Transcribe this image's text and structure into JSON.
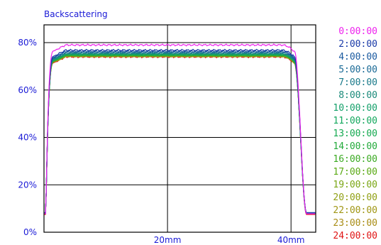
{
  "chart_data": {
    "type": "line",
    "title": "Backscattering",
    "xlabel": "",
    "ylabel": "",
    "x_unit": "mm",
    "xlim": [
      0,
      44
    ],
    "ylim": [
      0,
      80
    ],
    "xticks": [
      {
        "value": 20,
        "label": "20mm"
      },
      {
        "value": 40,
        "label": "40mm"
      }
    ],
    "yticks": [
      {
        "value": 0,
        "label": "0%"
      },
      {
        "value": 20,
        "label": "20%"
      },
      {
        "value": 40,
        "label": "40%"
      },
      {
        "value": 60,
        "label": "60%"
      },
      {
        "value": 80,
        "label": "80%"
      }
    ],
    "grid": true,
    "legend_position": "right",
    "series": [
      {
        "name": "0:00:00",
        "color": "#ee22ee",
        "plateau": 79.0,
        "edge": 7.8
      },
      {
        "name": "2:00:00",
        "color": "#1a3aa8",
        "plateau": 76.8,
        "edge": 8.3
      },
      {
        "name": "4:00:00",
        "color": "#1a5aa0",
        "plateau": 76.3,
        "edge": 8.0
      },
      {
        "name": "5:00:00",
        "color": "#1a6a96",
        "plateau": 76.0,
        "edge": 8.0
      },
      {
        "name": "7:00:00",
        "color": "#1a7a8a",
        "plateau": 75.7,
        "edge": 8.0
      },
      {
        "name": "8:00:00",
        "color": "#1a8a7a",
        "plateau": 75.4,
        "edge": 8.0
      },
      {
        "name": "10:00:00",
        "color": "#14a06a",
        "plateau": 75.2,
        "edge": 8.0
      },
      {
        "name": "11:00:00",
        "color": "#14a85e",
        "plateau": 75.0,
        "edge": 8.0
      },
      {
        "name": "13:00:00",
        "color": "#14aa50",
        "plateau": 74.9,
        "edge": 8.0
      },
      {
        "name": "14:00:00",
        "color": "#22aa3a",
        "plateau": 74.8,
        "edge": 8.0
      },
      {
        "name": "16:00:00",
        "color": "#3aaa22",
        "plateau": 74.7,
        "edge": 8.0
      },
      {
        "name": "17:00:00",
        "color": "#5aaa14",
        "plateau": 74.6,
        "edge": 8.0
      },
      {
        "name": "19:00:00",
        "color": "#7aa614",
        "plateau": 74.5,
        "edge": 8.0
      },
      {
        "name": "20:00:00",
        "color": "#90a014",
        "plateau": 74.4,
        "edge": 8.0
      },
      {
        "name": "22:00:00",
        "color": "#a09614",
        "plateau": 74.3,
        "edge": 8.0
      },
      {
        "name": "23:00:00",
        "color": "#a88c14",
        "plateau": 74.2,
        "edge": 8.0
      },
      {
        "name": "24:00:00",
        "color": "#e01414",
        "plateau": 74.0,
        "edge": 7.5
      }
    ]
  }
}
